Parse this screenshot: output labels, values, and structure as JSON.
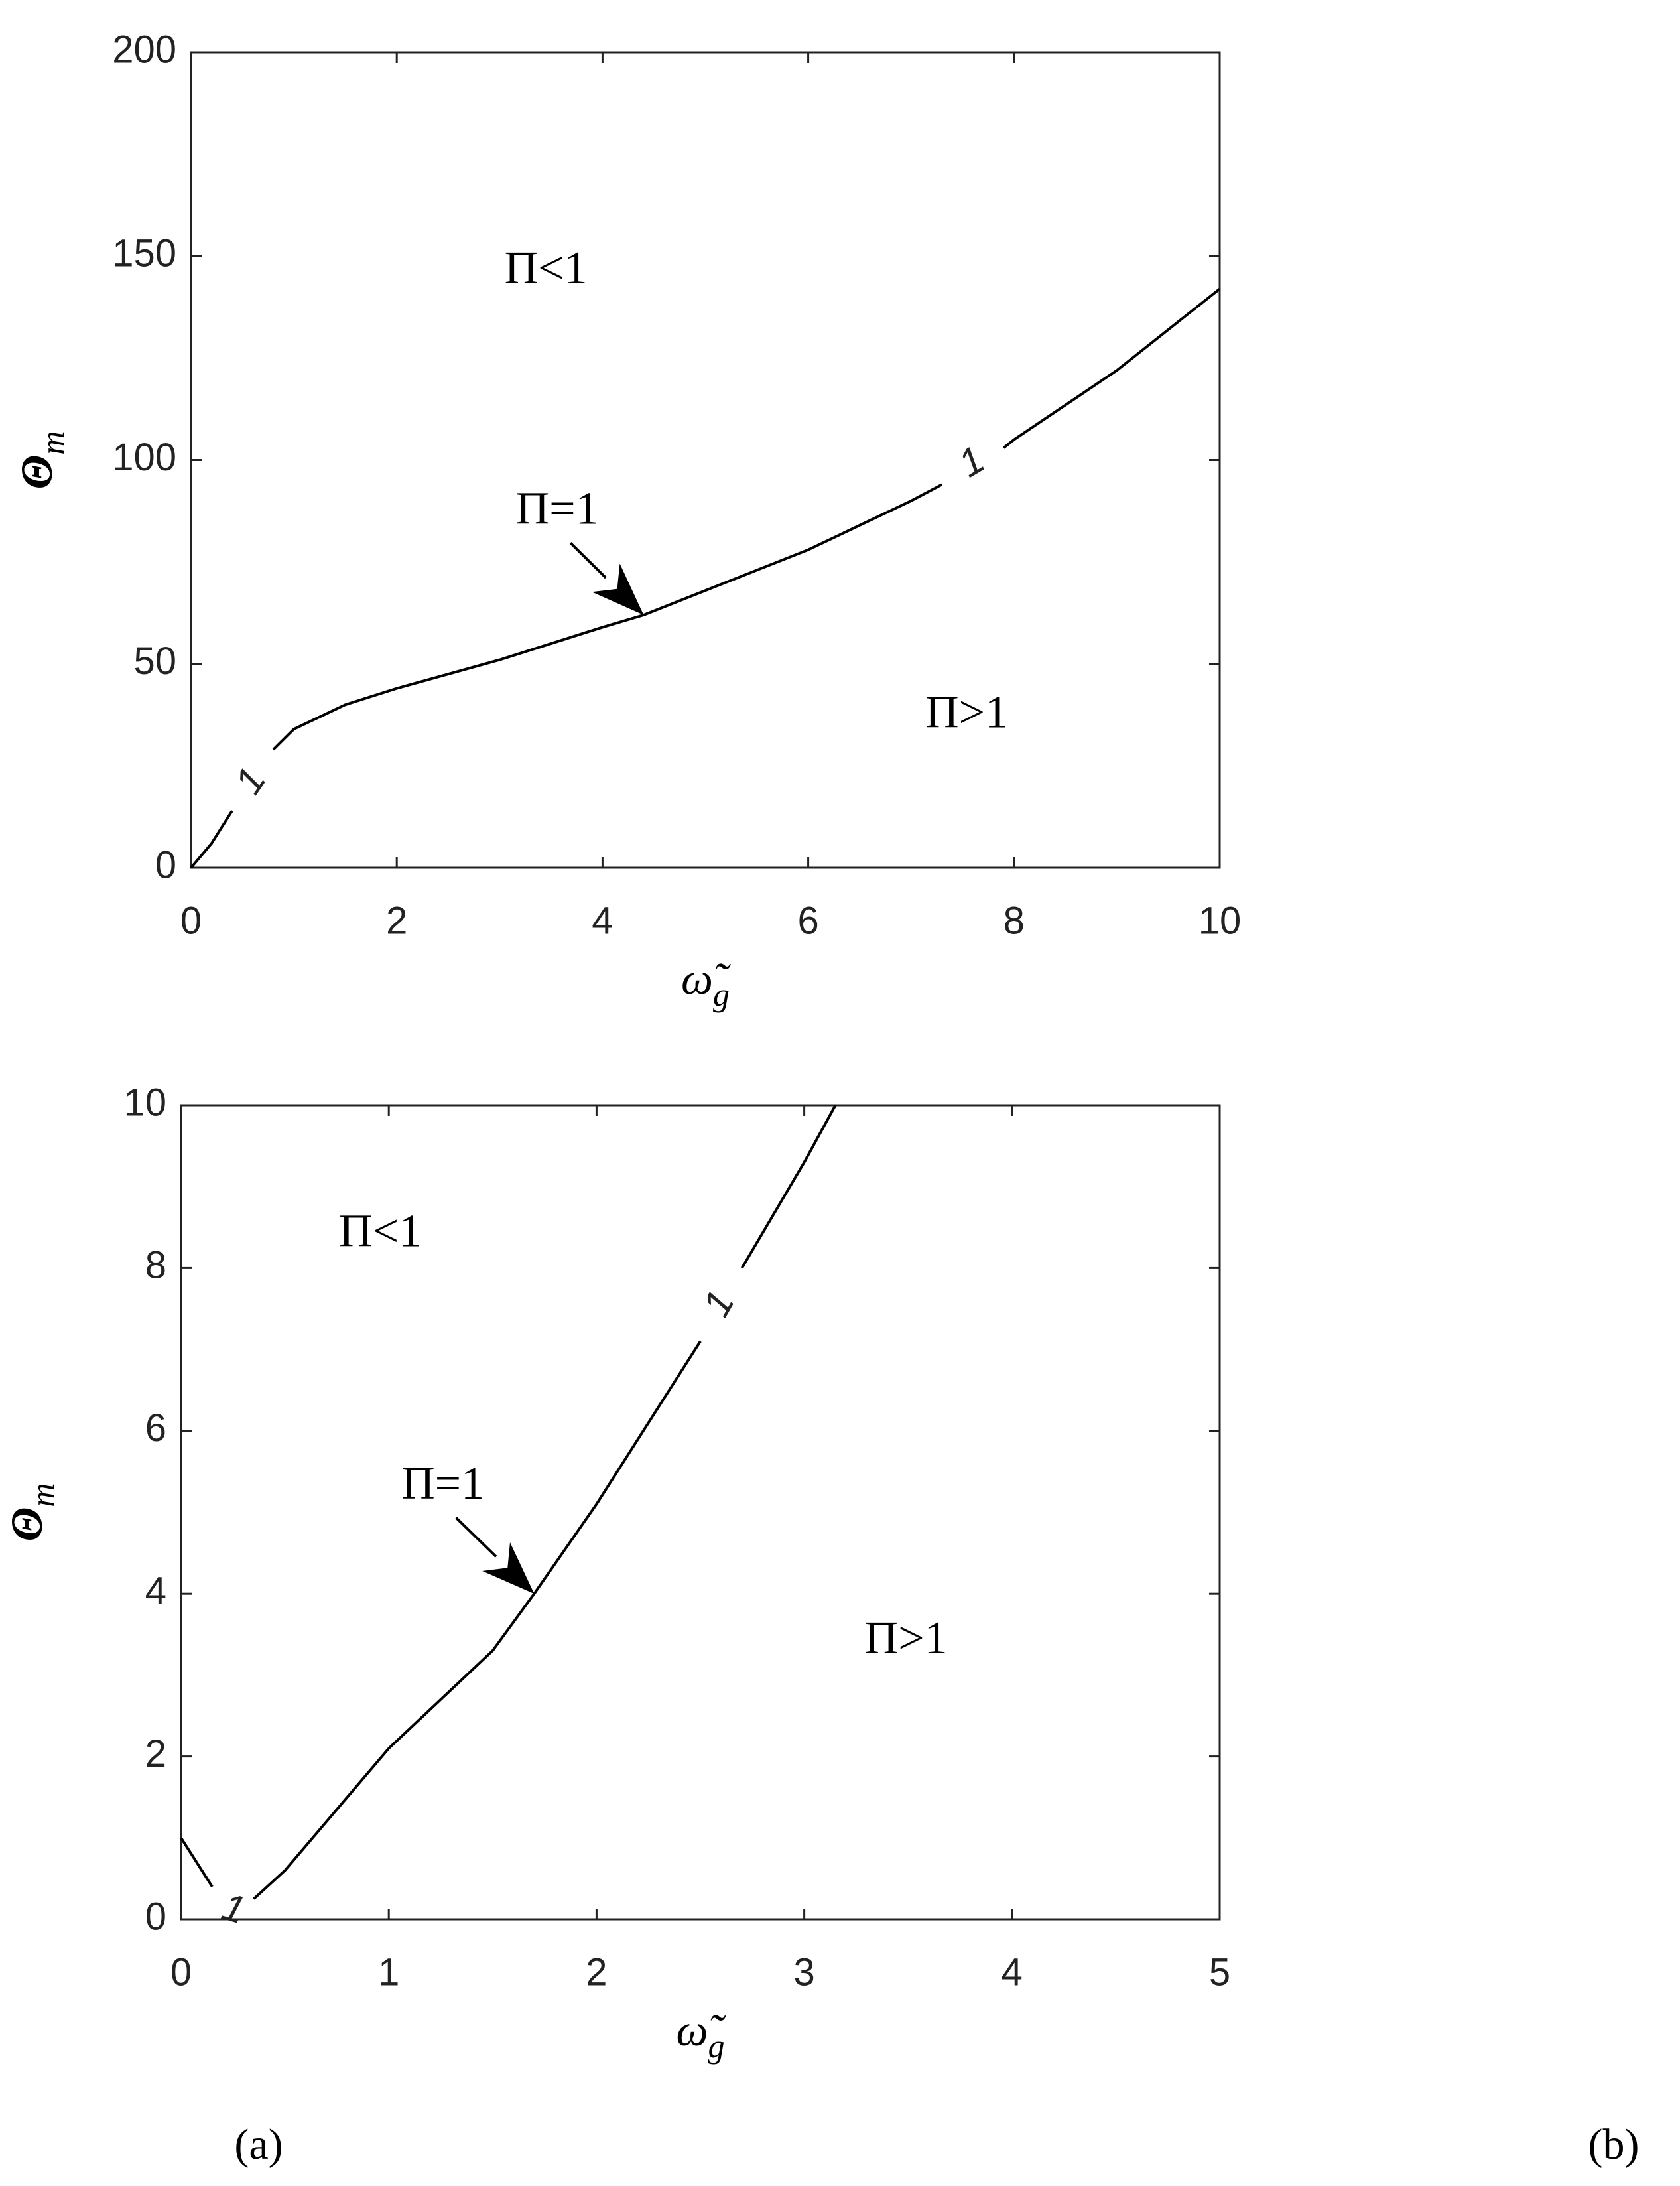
{
  "chart_data": [
    {
      "type": "line",
      "xlabel": {
        "base": "ω̃",
        "sub": "g"
      },
      "ylabel": {
        "base": "Θ",
        "sub": "m"
      },
      "xlim": [
        0,
        10
      ],
      "ylim": [
        0,
        200
      ],
      "xticks": [
        0,
        2,
        4,
        6,
        8,
        10
      ],
      "yticks": [
        0,
        50,
        100,
        150,
        200
      ],
      "color": "#000000",
      "x": [
        0,
        0.2,
        0.4,
        0.6,
        0.8,
        1,
        1.5,
        2,
        3,
        4,
        4.4,
        5,
        6,
        7,
        7.3,
        7.6,
        7.9,
        8,
        9,
        10
      ],
      "values": [
        0,
        6,
        14,
        null,
        29,
        34,
        40,
        44,
        51,
        59,
        62,
        68,
        78,
        90,
        94,
        null,
        103,
        105,
        122,
        142
      ],
      "contour_labels": [
        {
          "text": "1",
          "x": 0.6,
          "y": 21
        },
        {
          "text": "1",
          "x": 7.6,
          "y": 99
        }
      ],
      "annotations": [
        {
          "text": "Π<1",
          "x": 3.45,
          "y": 146
        },
        {
          "text": "Π=1",
          "x": 3.56,
          "y": 87,
          "arrow_to": [
            4.4,
            62
          ]
        },
        {
          "text": "Π>1",
          "x": 7.54,
          "y": 37
        }
      ]
    },
    {
      "type": "line",
      "xlabel": {
        "base": "ω̃",
        "sub": "g"
      },
      "ylabel": {
        "base": "Θ",
        "sub": "m"
      },
      "xlim": [
        0,
        5
      ],
      "ylim": [
        0,
        10
      ],
      "xticks": [
        0,
        1,
        2,
        3,
        4,
        5
      ],
      "yticks": [
        0,
        2,
        4,
        6,
        8,
        10
      ],
      "color": "#000000",
      "x": [
        0,
        0.15,
        0.25,
        0.35,
        0.5,
        1,
        1.5,
        1.7,
        2,
        2.3,
        2.5,
        2.6,
        2.7,
        3,
        3.15
      ],
      "values": [
        1,
        0.4,
        null,
        0.25,
        0.6,
        2.1,
        3.3,
        4,
        5.1,
        6.3,
        7.1,
        null,
        8.0,
        9.3,
        10
      ],
      "contour_labels": [
        {
          "text": "1",
          "x": 0.25,
          "y": 0.1
        },
        {
          "text": "1",
          "x": 2.6,
          "y": 7.55
        }
      ],
      "annotations": [
        {
          "text": "Π<1",
          "x": 0.96,
          "y": 8.4
        },
        {
          "text": "Π=1",
          "x": 1.26,
          "y": 5.3,
          "arrow_to": [
            1.7,
            4
          ]
        },
        {
          "text": "Π>1",
          "x": 3.49,
          "y": 3.4
        }
      ]
    }
  ],
  "panel_labels": [
    "(a)",
    "(b)"
  ]
}
